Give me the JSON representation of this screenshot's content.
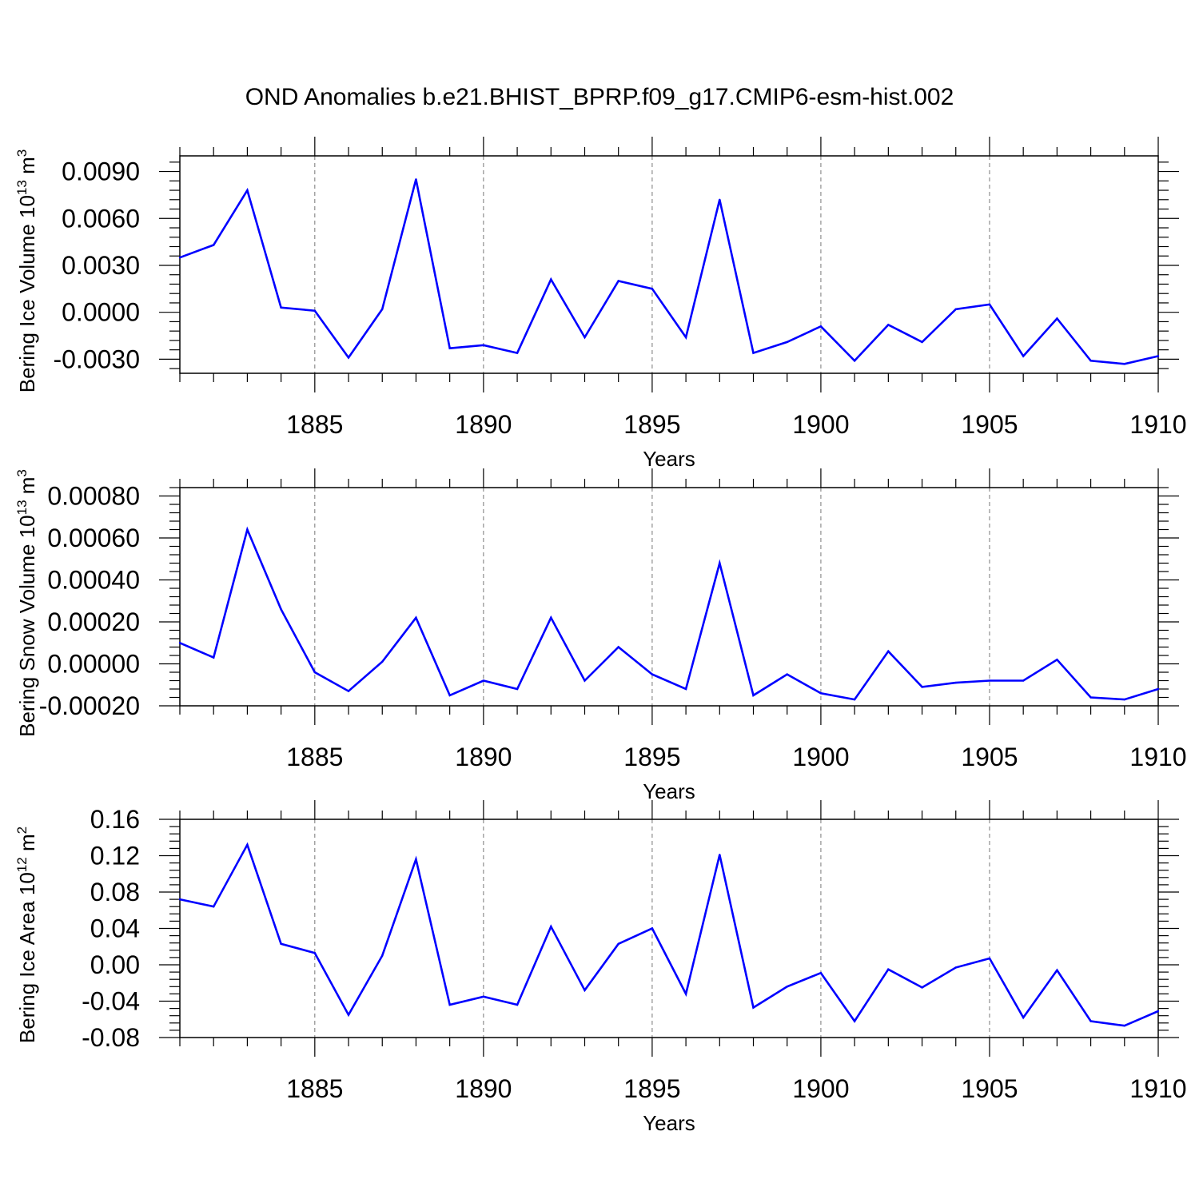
{
  "title": "OND Anomalies b.e21.BHIST_BPRP.f09_g17.CMIP6-esm-hist.002",
  "colors": {
    "series": "#0000ff",
    "axis": "#000000",
    "grid": "#777777"
  },
  "chart_data": [
    {
      "type": "line",
      "name": "ice-volume",
      "title": "OND Anomalies b.e21.BHIST_BPRP.f09_g17.CMIP6-esm-hist.002",
      "xlabel": "Years",
      "ylabel_main": "Bering Ice Volume 10",
      "ylabel_exp": "13",
      "ylabel_unit": "m",
      "ylabel_unit_exp": "3",
      "xlim": [
        1881,
        1910
      ],
      "ylim": [
        -0.0039,
        0.01
      ],
      "xticks": [
        "1885",
        "1890",
        "1895",
        "1900",
        "1905",
        "1910"
      ],
      "yticks": [
        {
          "value": 0.009,
          "label": "0.0090"
        },
        {
          "value": 0.006,
          "label": "0.0060"
        },
        {
          "value": 0.003,
          "label": "0.0030"
        },
        {
          "value": 0.0,
          "label": "0.0000"
        },
        {
          "value": -0.003,
          "label": "-0.0030"
        }
      ],
      "x": [
        1881,
        1882,
        1883,
        1884,
        1885,
        1886,
        1887,
        1888,
        1889,
        1890,
        1891,
        1892,
        1893,
        1894,
        1895,
        1896,
        1897,
        1898,
        1899,
        1900,
        1901,
        1902,
        1903,
        1904,
        1905,
        1906,
        1907,
        1908,
        1909,
        1910
      ],
      "values": [
        0.0035,
        0.0043,
        0.0078,
        0.0003,
        0.0001,
        -0.0029,
        0.0002,
        0.0085,
        -0.0023,
        -0.0021,
        -0.0026,
        0.0021,
        -0.0016,
        0.002,
        0.0015,
        -0.0016,
        0.0072,
        -0.0026,
        -0.0019,
        -0.0009,
        -0.0031,
        -0.0008,
        -0.0019,
        0.0002,
        0.0005,
        -0.0028,
        -0.0004,
        -0.0031,
        -0.0033,
        -0.0028
      ]
    },
    {
      "type": "line",
      "name": "snow-volume",
      "xlabel": "Years",
      "ylabel_main": "Bering Snow Volume 10",
      "ylabel_exp": "13",
      "ylabel_unit": "m",
      "ylabel_unit_exp": "3",
      "xlim": [
        1881,
        1910
      ],
      "ylim": [
        -0.0002,
        0.00084
      ],
      "xticks": [
        "1885",
        "1890",
        "1895",
        "1900",
        "1905",
        "1910"
      ],
      "yticks": [
        {
          "value": 0.0008,
          "label": "0.00080"
        },
        {
          "value": 0.0006,
          "label": "0.00060"
        },
        {
          "value": 0.0004,
          "label": "0.00040"
        },
        {
          "value": 0.0002,
          "label": "0.00020"
        },
        {
          "value": 0.0,
          "label": "0.00000"
        },
        {
          "value": -0.0002,
          "label": "-0.00020"
        }
      ],
      "x": [
        1881,
        1882,
        1883,
        1884,
        1885,
        1886,
        1887,
        1888,
        1889,
        1890,
        1891,
        1892,
        1893,
        1894,
        1895,
        1896,
        1897,
        1898,
        1899,
        1900,
        1901,
        1902,
        1903,
        1904,
        1905,
        1906,
        1907,
        1908,
        1909,
        1910
      ],
      "values": [
        0.0001,
        3e-05,
        0.00064,
        0.00026,
        -4e-05,
        -0.00013,
        1e-05,
        0.00022,
        -0.00015,
        -8e-05,
        -0.00012,
        0.00022,
        -8e-05,
        8e-05,
        -5e-05,
        -0.00012,
        0.00048,
        -0.00015,
        -5e-05,
        -0.00014,
        -0.00017,
        6e-05,
        -0.00011,
        -9e-05,
        -8e-05,
        -8e-05,
        2e-05,
        -0.00016,
        -0.00017,
        -0.00012
      ]
    },
    {
      "type": "line",
      "name": "ice-area",
      "xlabel": "Years",
      "ylabel_main": "Bering Ice Area 10",
      "ylabel_exp": "12",
      "ylabel_unit": "m",
      "ylabel_unit_exp": "2",
      "xlim": [
        1881,
        1910
      ],
      "ylim": [
        -0.08,
        0.16
      ],
      "xticks": [
        "1885",
        "1890",
        "1895",
        "1900",
        "1905",
        "1910"
      ],
      "yticks": [
        {
          "value": 0.16,
          "label": "0.16"
        },
        {
          "value": 0.12,
          "label": "0.12"
        },
        {
          "value": 0.08,
          "label": "0.08"
        },
        {
          "value": 0.04,
          "label": "0.04"
        },
        {
          "value": 0.0,
          "label": "0.00"
        },
        {
          "value": -0.04,
          "label": "-0.04"
        },
        {
          "value": -0.08,
          "label": "-0.08"
        }
      ],
      "x": [
        1881,
        1882,
        1883,
        1884,
        1885,
        1886,
        1887,
        1888,
        1889,
        1890,
        1891,
        1892,
        1893,
        1894,
        1895,
        1896,
        1897,
        1898,
        1899,
        1900,
        1901,
        1902,
        1903,
        1904,
        1905,
        1906,
        1907,
        1908,
        1909,
        1910
      ],
      "values": [
        0.072,
        0.064,
        0.132,
        0.023,
        0.013,
        -0.055,
        0.01,
        0.116,
        -0.044,
        -0.035,
        -0.044,
        0.042,
        -0.028,
        0.023,
        0.04,
        -0.032,
        0.121,
        -0.047,
        -0.024,
        -0.009,
        -0.062,
        -0.005,
        -0.025,
        -0.003,
        0.007,
        -0.058,
        -0.006,
        -0.062,
        -0.067,
        -0.051
      ]
    }
  ]
}
